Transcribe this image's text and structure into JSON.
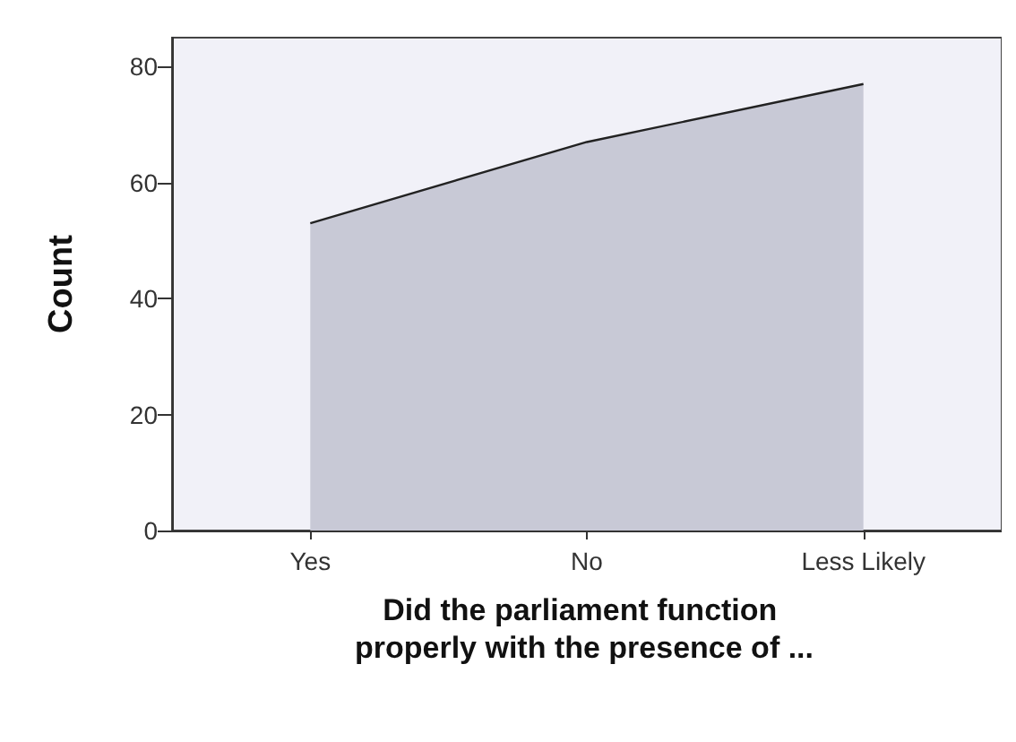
{
  "chart_data": {
    "type": "area",
    "xlabel": "Did the parliament function properly with the presence of ...",
    "ylabel": "Count",
    "categories": [
      "Yes",
      "No",
      "Less Likely"
    ],
    "values": [
      53,
      67,
      77
    ],
    "color": "#c8c9d6",
    "ylim": [
      0,
      85
    ],
    "yticks": [
      0,
      20,
      40,
      60,
      80
    ],
    "grid": false
  }
}
